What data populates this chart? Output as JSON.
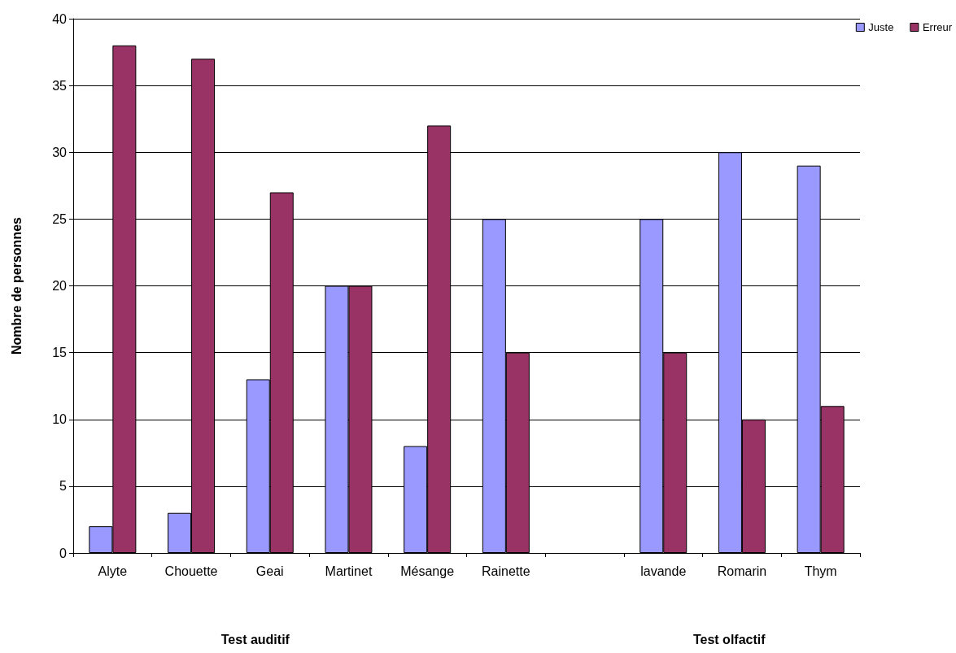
{
  "chart_data": {
    "type": "bar",
    "ylabel": "Nombre de personnes",
    "categories": [
      "Alyte",
      "Chouette",
      "Geai",
      "Martinet",
      "Mésange",
      "Rainette",
      null,
      "lavande",
      "Romarin",
      "Thym"
    ],
    "series": [
      {
        "name": "Juste",
        "color": "#9999ff",
        "values": [
          2,
          3,
          13,
          20,
          8,
          25,
          null,
          25,
          30,
          29
        ]
      },
      {
        "name": "Erreur",
        "color": "#993366",
        "values": [
          38,
          37,
          27,
          20,
          32,
          15,
          null,
          15,
          10,
          11
        ]
      }
    ],
    "ylim": [
      0,
      40
    ],
    "yticks": [
      0,
      5,
      10,
      15,
      20,
      25,
      30,
      35,
      40
    ],
    "grid": "y",
    "legend": "top right",
    "annotations": [
      "Test auditif",
      "Test olfactif"
    ]
  }
}
